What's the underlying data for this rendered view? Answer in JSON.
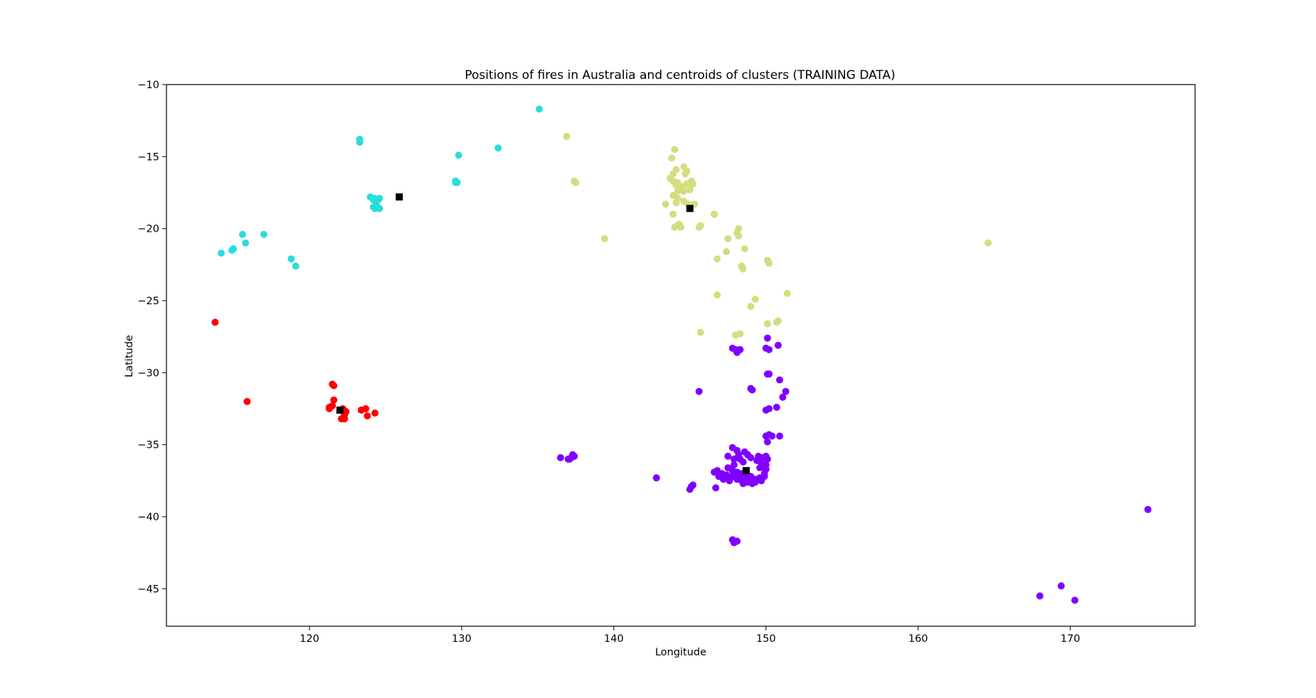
{
  "chart_data": {
    "type": "scatter",
    "title": "Positions of fires in Australia and centroids of clusters (TRAINING DATA)",
    "xlabel": "Longitude",
    "ylabel": "Latitude",
    "xlim": [
      110.6,
      178.2
    ],
    "ylim": [
      -47.6,
      -10
    ],
    "xticks": [
      120,
      130,
      140,
      150,
      160,
      170
    ],
    "yticks": [
      -10,
      -15,
      -20,
      -25,
      -30,
      -35,
      -40,
      -45
    ],
    "grid": false,
    "legend": "none",
    "series": [
      {
        "color": "#2adddd",
        "points": [
          [
            135.1,
            -11.7
          ],
          [
            123.3,
            -13.8
          ],
          [
            123.3,
            -14.0
          ],
          [
            129.8,
            -14.9
          ],
          [
            132.4,
            -14.4
          ],
          [
            129.6,
            -16.7
          ],
          [
            129.7,
            -16.8
          ],
          [
            129.6,
            -16.8
          ],
          [
            124.0,
            -17.8
          ],
          [
            124.3,
            -17.9
          ],
          [
            124.5,
            -18.0
          ],
          [
            124.6,
            -17.9
          ],
          [
            124.2,
            -18.0
          ],
          [
            124.2,
            -18.5
          ],
          [
            124.4,
            -18.4
          ],
          [
            124.6,
            -18.6
          ],
          [
            124.3,
            -18.6
          ],
          [
            115.6,
            -20.4
          ],
          [
            117.0,
            -20.4
          ],
          [
            115.8,
            -21.0
          ],
          [
            115.0,
            -21.4
          ],
          [
            114.9,
            -21.5
          ],
          [
            114.2,
            -21.7
          ],
          [
            118.8,
            -22.1
          ],
          [
            119.1,
            -22.6
          ]
        ]
      },
      {
        "color": "#d4dd80",
        "points": [
          [
            136.9,
            -13.6
          ],
          [
            137.4,
            -16.7
          ],
          [
            137.5,
            -16.8
          ],
          [
            144.0,
            -14.5
          ],
          [
            143.8,
            -15.1
          ],
          [
            144.1,
            -15.9
          ],
          [
            143.9,
            -16.2
          ],
          [
            144.6,
            -15.7
          ],
          [
            144.8,
            -16.0
          ],
          [
            144.7,
            -16.2
          ],
          [
            143.7,
            -16.5
          ],
          [
            143.9,
            -16.7
          ],
          [
            144.2,
            -16.8
          ],
          [
            144.1,
            -17.0
          ],
          [
            144.5,
            -17.1
          ],
          [
            144.8,
            -16.9
          ],
          [
            145.1,
            -16.7
          ],
          [
            145.2,
            -16.9
          ],
          [
            145.0,
            -17.3
          ],
          [
            144.6,
            -17.4
          ],
          [
            144.2,
            -17.4
          ],
          [
            143.9,
            -17.7
          ],
          [
            144.2,
            -17.9
          ],
          [
            144.1,
            -18.2
          ],
          [
            144.6,
            -18.1
          ],
          [
            144.9,
            -18.3
          ],
          [
            145.3,
            -18.3
          ],
          [
            145.0,
            -18.5
          ],
          [
            143.4,
            -18.3
          ],
          [
            143.9,
            -19.0
          ],
          [
            144.2,
            -19.8
          ],
          [
            144.4,
            -19.9
          ],
          [
            144.0,
            -19.9
          ],
          [
            144.3,
            -19.7
          ],
          [
            145.7,
            -19.8
          ],
          [
            145.6,
            -19.9
          ],
          [
            146.6,
            -19.0
          ],
          [
            148.2,
            -20.0
          ],
          [
            148.1,
            -20.3
          ],
          [
            148.2,
            -20.5
          ],
          [
            147.5,
            -20.7
          ],
          [
            148.6,
            -21.4
          ],
          [
            147.4,
            -21.6
          ],
          [
            146.8,
            -22.1
          ],
          [
            148.4,
            -22.6
          ],
          [
            148.5,
            -22.8
          ],
          [
            150.1,
            -22.2
          ],
          [
            150.2,
            -22.4
          ],
          [
            139.4,
            -20.7
          ],
          [
            164.6,
            -21.0
          ],
          [
            146.8,
            -24.6
          ],
          [
            151.4,
            -24.5
          ],
          [
            149.3,
            -24.9
          ],
          [
            149.0,
            -25.4
          ],
          [
            150.8,
            -26.4
          ],
          [
            150.7,
            -26.5
          ],
          [
            150.1,
            -26.6
          ],
          [
            145.7,
            -27.2
          ],
          [
            148.3,
            -27.3
          ],
          [
            148.0,
            -27.4
          ]
        ]
      },
      {
        "color": "#ff0000",
        "points": [
          [
            113.8,
            -26.5
          ],
          [
            115.9,
            -32.0
          ],
          [
            121.5,
            -30.8
          ],
          [
            121.6,
            -30.9
          ],
          [
            121.6,
            -31.9
          ],
          [
            121.3,
            -32.4
          ],
          [
            121.3,
            -32.5
          ],
          [
            121.5,
            -32.3
          ],
          [
            122.2,
            -32.5
          ],
          [
            122.4,
            -32.7
          ],
          [
            122.3,
            -32.9
          ],
          [
            122.1,
            -33.2
          ],
          [
            122.3,
            -33.2
          ],
          [
            123.4,
            -32.6
          ],
          [
            123.7,
            -32.5
          ],
          [
            123.8,
            -33.0
          ],
          [
            124.3,
            -32.8
          ]
        ]
      },
      {
        "color": "#8000ff",
        "points": [
          [
            150.1,
            -27.6
          ],
          [
            150.8,
            -28.1
          ],
          [
            147.8,
            -28.3
          ],
          [
            148.0,
            -28.4
          ],
          [
            148.3,
            -28.4
          ],
          [
            148.1,
            -28.6
          ],
          [
            150.0,
            -28.3
          ],
          [
            150.2,
            -28.4
          ],
          [
            150.1,
            -30.1
          ],
          [
            150.2,
            -30.1
          ],
          [
            150.9,
            -30.5
          ],
          [
            149.0,
            -31.1
          ],
          [
            149.1,
            -31.2
          ],
          [
            151.3,
            -31.3
          ],
          [
            151.1,
            -31.7
          ],
          [
            145.6,
            -31.3
          ],
          [
            150.0,
            -32.6
          ],
          [
            150.2,
            -32.5
          ],
          [
            150.7,
            -32.4
          ],
          [
            150.0,
            -34.4
          ],
          [
            150.2,
            -34.3
          ],
          [
            150.4,
            -34.4
          ],
          [
            150.9,
            -34.4
          ],
          [
            150.1,
            -34.8
          ],
          [
            147.8,
            -35.2
          ],
          [
            148.1,
            -35.4
          ],
          [
            148.6,
            -35.5
          ],
          [
            148.2,
            -35.7
          ],
          [
            148.8,
            -35.7
          ],
          [
            149.0,
            -35.9
          ],
          [
            147.5,
            -35.8
          ],
          [
            147.9,
            -36.0
          ],
          [
            148.3,
            -36.0
          ],
          [
            148.5,
            -36.2
          ],
          [
            149.5,
            -35.8
          ],
          [
            149.8,
            -35.9
          ],
          [
            150.0,
            -35.8
          ],
          [
            150.1,
            -36.0
          ],
          [
            149.4,
            -36.1
          ],
          [
            149.7,
            -36.3
          ],
          [
            150.0,
            -36.4
          ],
          [
            149.6,
            -36.6
          ],
          [
            150.0,
            -36.7
          ],
          [
            149.9,
            -37.0
          ],
          [
            147.9,
            -36.4
          ],
          [
            147.5,
            -36.6
          ],
          [
            147.8,
            -36.8
          ],
          [
            148.1,
            -36.9
          ],
          [
            148.4,
            -37.0
          ],
          [
            148.7,
            -37.1
          ],
          [
            149.0,
            -37.2
          ],
          [
            149.3,
            -37.4
          ],
          [
            149.6,
            -37.3
          ],
          [
            149.9,
            -37.2
          ],
          [
            149.7,
            -37.5
          ],
          [
            149.3,
            -37.6
          ],
          [
            148.8,
            -37.6
          ],
          [
            148.4,
            -37.5
          ],
          [
            148.1,
            -37.4
          ],
          [
            147.8,
            -37.2
          ],
          [
            147.4,
            -37.1
          ],
          [
            147.1,
            -37.0
          ],
          [
            146.8,
            -36.8
          ],
          [
            146.6,
            -36.9
          ],
          [
            146.9,
            -37.2
          ],
          [
            147.2,
            -37.4
          ],
          [
            147.6,
            -37.5
          ],
          [
            148.5,
            -37.7
          ],
          [
            149.1,
            -37.7
          ],
          [
            148.9,
            -37.4
          ],
          [
            148.6,
            -37.3
          ],
          [
            148.2,
            -37.2
          ],
          [
            147.9,
            -37.0
          ],
          [
            146.7,
            -38.0
          ],
          [
            145.2,
            -37.8
          ],
          [
            145.0,
            -38.1
          ],
          [
            145.1,
            -37.9
          ],
          [
            142.8,
            -37.3
          ],
          [
            136.5,
            -35.9
          ],
          [
            137.0,
            -36.0
          ],
          [
            137.2,
            -35.9
          ],
          [
            137.3,
            -35.7
          ],
          [
            137.4,
            -35.8
          ],
          [
            137.1,
            -36.0
          ],
          [
            147.8,
            -41.6
          ],
          [
            148.1,
            -41.7
          ],
          [
            147.9,
            -41.8
          ],
          [
            175.1,
            -39.5
          ],
          [
            169.4,
            -44.8
          ],
          [
            168.0,
            -45.5
          ],
          [
            170.3,
            -45.8
          ]
        ]
      }
    ],
    "centroids": {
      "color": "#000000",
      "marker": "square",
      "points": [
        [
          125.9,
          -17.8
        ],
        [
          145.0,
          -18.6
        ],
        [
          122.0,
          -32.6
        ],
        [
          148.7,
          -36.8
        ]
      ]
    }
  }
}
